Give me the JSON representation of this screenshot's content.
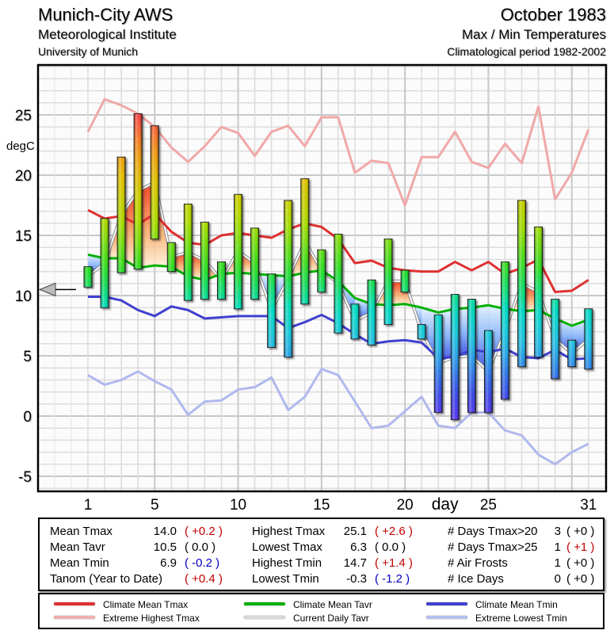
{
  "header": {
    "station": "Munich-City AWS",
    "institute": "Meteorological Institute",
    "university": "University of Munich",
    "month": "October 1983",
    "subtitle": "Max / Min Temperatures",
    "period": "Climatological period 1982-2002"
  },
  "chart_data": {
    "type": "bar",
    "title": "Max / Min Temperatures October 1983",
    "xlabel": "day",
    "ylabel": "degC",
    "ylim": [
      -6,
      30
    ],
    "xlim": [
      -2,
      32
    ],
    "y_ticks": [
      25,
      20,
      15,
      10,
      5,
      0,
      -5
    ],
    "x_ticks": [
      1,
      5,
      10,
      15,
      20,
      25,
      31
    ],
    "grid": true,
    "year_anomaly_marker": 10.5,
    "days": [
      1,
      2,
      3,
      4,
      5,
      6,
      7,
      8,
      9,
      10,
      11,
      12,
      13,
      14,
      15,
      16,
      17,
      18,
      19,
      20,
      21,
      22,
      23,
      24,
      25,
      26,
      27,
      28,
      29,
      30,
      31
    ],
    "daily_tmax": [
      12.4,
      16.4,
      21.5,
      25.1,
      24.1,
      14.4,
      17.6,
      16.1,
      12.8,
      18.4,
      15.6,
      11.8,
      17.9,
      19.7,
      13.8,
      15.1,
      9.3,
      11.3,
      14.7,
      12.1,
      7.6,
      8.4,
      10.1,
      9.7,
      7.1,
      12.8,
      17.9,
      15.7,
      9.7,
      6.3,
      8.9
    ],
    "daily_tmin": [
      10.7,
      9.0,
      11.9,
      12.2,
      14.7,
      12.0,
      9.6,
      9.7,
      9.7,
      8.9,
      9.7,
      5.7,
      4.9,
      9.3,
      10.3,
      6.9,
      6.4,
      5.9,
      7.6,
      10.3,
      6.4,
      0.3,
      -0.3,
      0.3,
      0.3,
      1.4,
      4.1,
      4.9,
      3.1,
      4.1,
      3.9
    ],
    "series": [
      {
        "name": "Climate Mean Tmax",
        "color": "#e03030",
        "values": [
          17.1,
          16.4,
          16.6,
          15.9,
          16.8,
          15.3,
          14.4,
          14.2,
          15.0,
          15.2,
          15.0,
          14.8,
          15.5,
          16.0,
          15.7,
          14.7,
          12.7,
          12.9,
          12.3,
          12.1,
          12.0,
          12.0,
          12.8,
          12.1,
          12.8,
          11.8,
          12.3,
          13.0,
          10.3,
          10.4,
          11.3
        ]
      },
      {
        "name": "Climate Mean Tavr",
        "color": "#00b000",
        "values": [
          13.4,
          13.1,
          13.1,
          12.3,
          12.5,
          12.4,
          11.6,
          11.3,
          11.8,
          11.9,
          11.8,
          11.7,
          11.6,
          11.9,
          12.1,
          11.2,
          9.8,
          9.3,
          9.2,
          9.3,
          9.0,
          8.6,
          8.9,
          9.0,
          9.2,
          8.9,
          8.7,
          8.8,
          8.1,
          7.5,
          8.0
        ]
      },
      {
        "name": "Climate Mean Tmin",
        "color": "#4040d0",
        "values": [
          9.9,
          9.9,
          9.6,
          8.8,
          8.3,
          9.1,
          8.8,
          8.1,
          8.2,
          8.3,
          8.3,
          8.3,
          7.3,
          7.8,
          8.4,
          7.7,
          6.8,
          6.0,
          6.2,
          6.3,
          6.1,
          4.8,
          4.9,
          5.5,
          5.3,
          5.6,
          4.9,
          4.8,
          5.5,
          4.7,
          4.8
        ]
      },
      {
        "name": "Extreme Highest Tmax",
        "color": "#f0a8a8",
        "values": [
          23.6,
          26.3,
          25.8,
          25.1,
          24.0,
          22.3,
          21.1,
          22.4,
          24.0,
          23.5,
          21.6,
          23.6,
          24.1,
          22.4,
          24.8,
          24.8,
          20.2,
          21.2,
          21.0,
          17.5,
          21.5,
          21.5,
          23.6,
          21.1,
          20.6,
          22.6,
          21.0,
          25.7,
          18.0,
          20.2,
          23.8
        ]
      },
      {
        "name": "Current Daily Tavr",
        "color": "#b0b0b0",
        "values": [
          11.6,
          12.7,
          16.7,
          18.7,
          19.4,
          13.2,
          13.6,
          12.9,
          11.3,
          13.7,
          12.7,
          8.8,
          11.4,
          14.5,
          12.1,
          11.0,
          7.9,
          8.6,
          11.2,
          11.2,
          7.0,
          4.4,
          4.9,
          5.0,
          3.7,
          7.1,
          11.0,
          10.3,
          6.4,
          5.2,
          6.4
        ]
      },
      {
        "name": "Extreme Lowest Tmin",
        "color": "#b0b8ee",
        "values": [
          3.4,
          2.6,
          3.0,
          3.7,
          2.9,
          2.2,
          0.1,
          1.2,
          1.3,
          2.2,
          2.4,
          3.2,
          0.5,
          1.6,
          3.9,
          3.4,
          1.2,
          -1.0,
          -0.8,
          0.4,
          1.6,
          -0.8,
          -1.0,
          0.3,
          0.3,
          -1.2,
          -1.6,
          -3.2,
          -4.0,
          -3.0,
          -2.3
        ]
      }
    ]
  },
  "stats": {
    "col1": [
      {
        "label": "Mean Tmax",
        "value": "14.0",
        "anom": "( +0.2 )",
        "tone": "red"
      },
      {
        "label": "Mean Tavr",
        "value": "10.5",
        "anom": "(  0.0 )",
        "tone": "blk"
      },
      {
        "label": "Mean Tmin",
        "value": "6.9",
        "anom": "( -0.2 )",
        "tone": "blue"
      },
      {
        "label": "Tanom (Year to Date)",
        "value": "",
        "anom": "( +0.4 )",
        "tone": "red"
      }
    ],
    "col2": [
      {
        "label": "Highest Tmax",
        "value": "25.1",
        "anom": "( +2.6 )",
        "tone": "red"
      },
      {
        "label": "Lowest Tmax",
        "value": "6.3",
        "anom": "(  0.0 )",
        "tone": "blk"
      },
      {
        "label": "Highest Tmin",
        "value": "14.7",
        "anom": "( +1.4 )",
        "tone": "red"
      },
      {
        "label": "Lowest Tmin",
        "value": "-0.3",
        "anom": "( -1.2 )",
        "tone": "blue"
      }
    ],
    "col3": [
      {
        "label": "# Days Tmax>20",
        "value": "3",
        "anom": "( +0 )",
        "tone": "blk"
      },
      {
        "label": "# Days Tmax>25",
        "value": "1",
        "anom": "( +1 )",
        "tone": "red"
      },
      {
        "label": "# Air Frosts",
        "value": "1",
        "anom": "( +0 )",
        "tone": "blk"
      },
      {
        "label": "# Ice Days",
        "value": "0",
        "anom": "( +0 )",
        "tone": "blk"
      }
    ]
  },
  "legend": [
    {
      "label": "Climate Mean Tmax",
      "color": "#e03030"
    },
    {
      "label": "Extreme Highest Tmax",
      "color": "#f0b0b0"
    },
    {
      "label": "Climate Mean Tavr",
      "color": "#00b000"
    },
    {
      "label": "Current Daily Tavr",
      "color": "#d8d8d8"
    },
    {
      "label": "Climate Mean Tmin",
      "color": "#4040d0"
    },
    {
      "label": "Extreme Lowest Tmin",
      "color": "#b8c0f0"
    }
  ]
}
